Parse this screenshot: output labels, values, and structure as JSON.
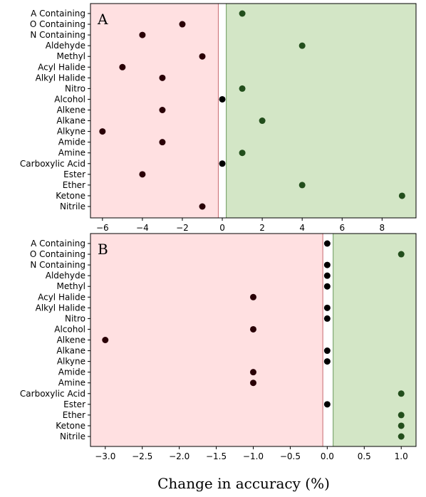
{
  "chart_data": [
    {
      "type": "scatter",
      "panel_label": "A",
      "categories": [
        "A Containing",
        "O Containing",
        "N Containing",
        "Aldehyde",
        "Methyl",
        "Acyl Halide",
        "Alkyl Halide",
        "Nitro",
        "Alcohol",
        "Alkene",
        "Alkane",
        "Alkyne",
        "Amide",
        "Amine",
        "Carboxylic Acid",
        "Ester",
        "Ether",
        "Ketone",
        "Nitrile"
      ],
      "values": [
        1,
        -2,
        -4,
        4,
        -1,
        -5,
        -3,
        1,
        0,
        -3,
        2,
        -6,
        -3,
        1,
        0,
        -4,
        4,
        9,
        -1
      ],
      "xlim": [
        -6.6,
        9.7
      ],
      "xticks": [
        -6,
        -4,
        -2,
        0,
        2,
        4,
        6,
        8
      ],
      "xtick_labels": [
        "−6",
        "−4",
        "−2",
        "0",
        "2",
        "4",
        "6",
        "8"
      ],
      "negative_region_end": -0.2,
      "positive_region_start": 0.2,
      "colors": {
        "negative_bg": "#ffe0e1",
        "negative_edge": "#c8696e",
        "positive_bg": "#d3e6c6",
        "positive_edge": "#6a9a5a",
        "neg_marker": "#2a0006",
        "pos_marker": "#224e1c",
        "zero_marker": "#000000"
      }
    },
    {
      "type": "scatter",
      "panel_label": "B",
      "categories": [
        "A Containing",
        "O Containing",
        "N Containing",
        "Aldehyde",
        "Methyl",
        "Acyl Halide",
        "Alkyl Halide",
        "Nitro",
        "Alcohol",
        "Alkene",
        "Alkane",
        "Alkyne",
        "Amide",
        "Amine",
        "Carboxylic Acid",
        "Ester",
        "Ether",
        "Ketone",
        "Nitrile"
      ],
      "values": [
        0,
        1,
        0,
        0,
        0,
        -1,
        0,
        0,
        -1,
        -3,
        0,
        0,
        -1,
        -1,
        1,
        0,
        1,
        1,
        1
      ],
      "xlim": [
        -3.2,
        1.2
      ],
      "xticks": [
        -3.0,
        -2.5,
        -2.0,
        -1.5,
        -1.0,
        -0.5,
        0.0,
        0.5,
        1.0
      ],
      "xtick_labels": [
        "−3.0",
        "−2.5",
        "−2.0",
        "−1.5",
        "−1.0",
        "−0.5",
        "0.0",
        "0.5",
        "1.0"
      ],
      "negative_region_end": -0.06,
      "positive_region_start": 0.08,
      "colors": {
        "negative_bg": "#ffe0e1",
        "negative_edge": "#c8696e",
        "positive_bg": "#d3e6c6",
        "positive_edge": "#6a9a5a",
        "neg_marker": "#2a0006",
        "pos_marker": "#224e1c",
        "zero_marker": "#000000"
      }
    }
  ],
  "xlabel": "Change in accuracy (%)"
}
